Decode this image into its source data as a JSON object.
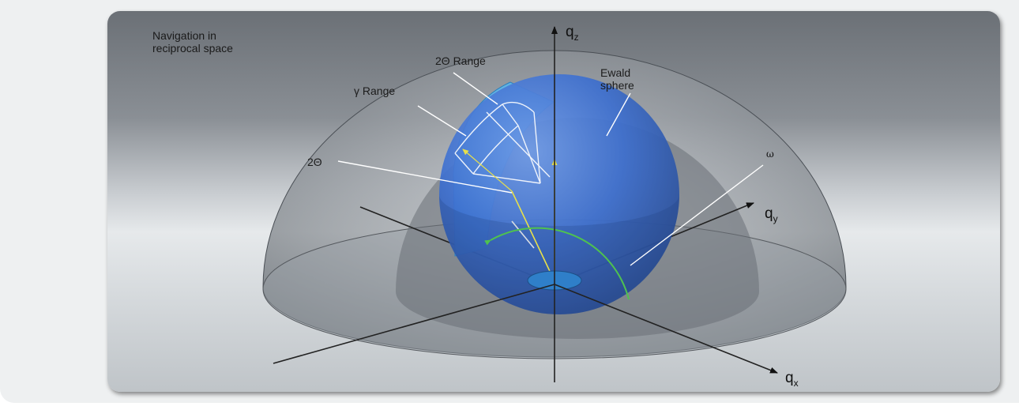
{
  "diagram": {
    "title_line1": "Navigation in",
    "title_line2": "reciprocal space",
    "labels": {
      "two_theta_range": "2Θ Range",
      "gamma_range": "γ Range",
      "two_theta": "2Θ",
      "ewald_line1": "Ewald",
      "ewald_line2": "sphere",
      "omega": "ω"
    },
    "axes": {
      "qz_base": "q",
      "qz_sub": "z",
      "qy_base": "q",
      "qy_sub": "y",
      "qx_base": "q",
      "qx_sub": "x"
    },
    "colors": {
      "sphere": "#3a6fd1",
      "hemisphere": "#7f858c",
      "detector": "#4aa8e0",
      "omega_arc": "#4fc24f",
      "beam": "#e8e04a"
    }
  }
}
